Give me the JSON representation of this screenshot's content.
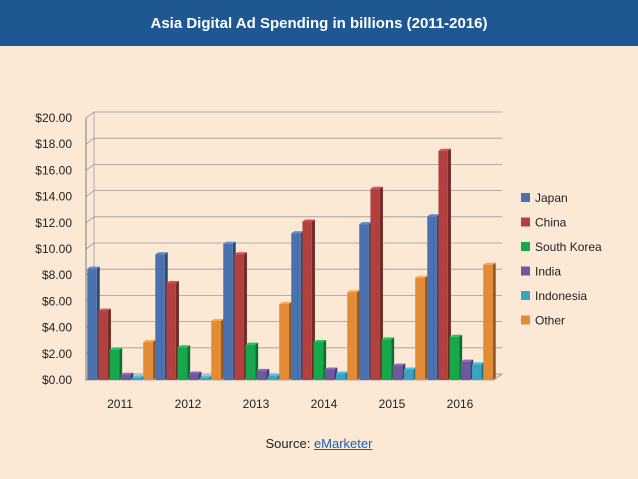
{
  "title": "Asia Digital Ad Spending in billions (2011-2016)",
  "source": {
    "prefix": "Source: ",
    "link_text": "eMarketer"
  },
  "colors": {
    "background": "#fbe9d6",
    "title_bar": "#1e5791",
    "title_text": "#ffffff",
    "link": "#1a5fb4"
  },
  "chart_data": {
    "type": "bar",
    "title": "Asia Digital Ad Spending in billions (2011-2016)",
    "xlabel": "",
    "ylabel": "",
    "ylim": [
      0,
      20
    ],
    "yticks": [
      "$0.00",
      "$2.00",
      "$4.00",
      "$6.00",
      "$8.00",
      "$10.00",
      "$12.00",
      "$14.00",
      "$16.00",
      "$18.00",
      "$20.00"
    ],
    "grid": true,
    "legend_position": "right",
    "categories": [
      "2011",
      "2012",
      "2013",
      "2014",
      "2015",
      "2016"
    ],
    "series": [
      {
        "name": "Japan",
        "color": "#4a72b0",
        "values": [
          8.5,
          9.6,
          10.4,
          11.2,
          11.9,
          12.5
        ]
      },
      {
        "name": "China",
        "color": "#b2403e",
        "values": [
          5.3,
          7.4,
          9.6,
          12.1,
          14.6,
          17.5
        ]
      },
      {
        "name": "South Korea",
        "color": "#17a84b",
        "values": [
          2.3,
          2.5,
          2.7,
          2.9,
          3.1,
          3.3
        ]
      },
      {
        "name": "India",
        "color": "#6e58a0",
        "values": [
          0.4,
          0.5,
          0.7,
          0.8,
          1.1,
          1.4
        ]
      },
      {
        "name": "Indonesia",
        "color": "#3aa3c2",
        "values": [
          0.2,
          0.2,
          0.3,
          0.5,
          0.8,
          1.2
        ]
      },
      {
        "name": "Other",
        "color": "#e38b35",
        "values": [
          2.9,
          4.5,
          5.8,
          6.7,
          7.8,
          8.8
        ]
      }
    ]
  }
}
